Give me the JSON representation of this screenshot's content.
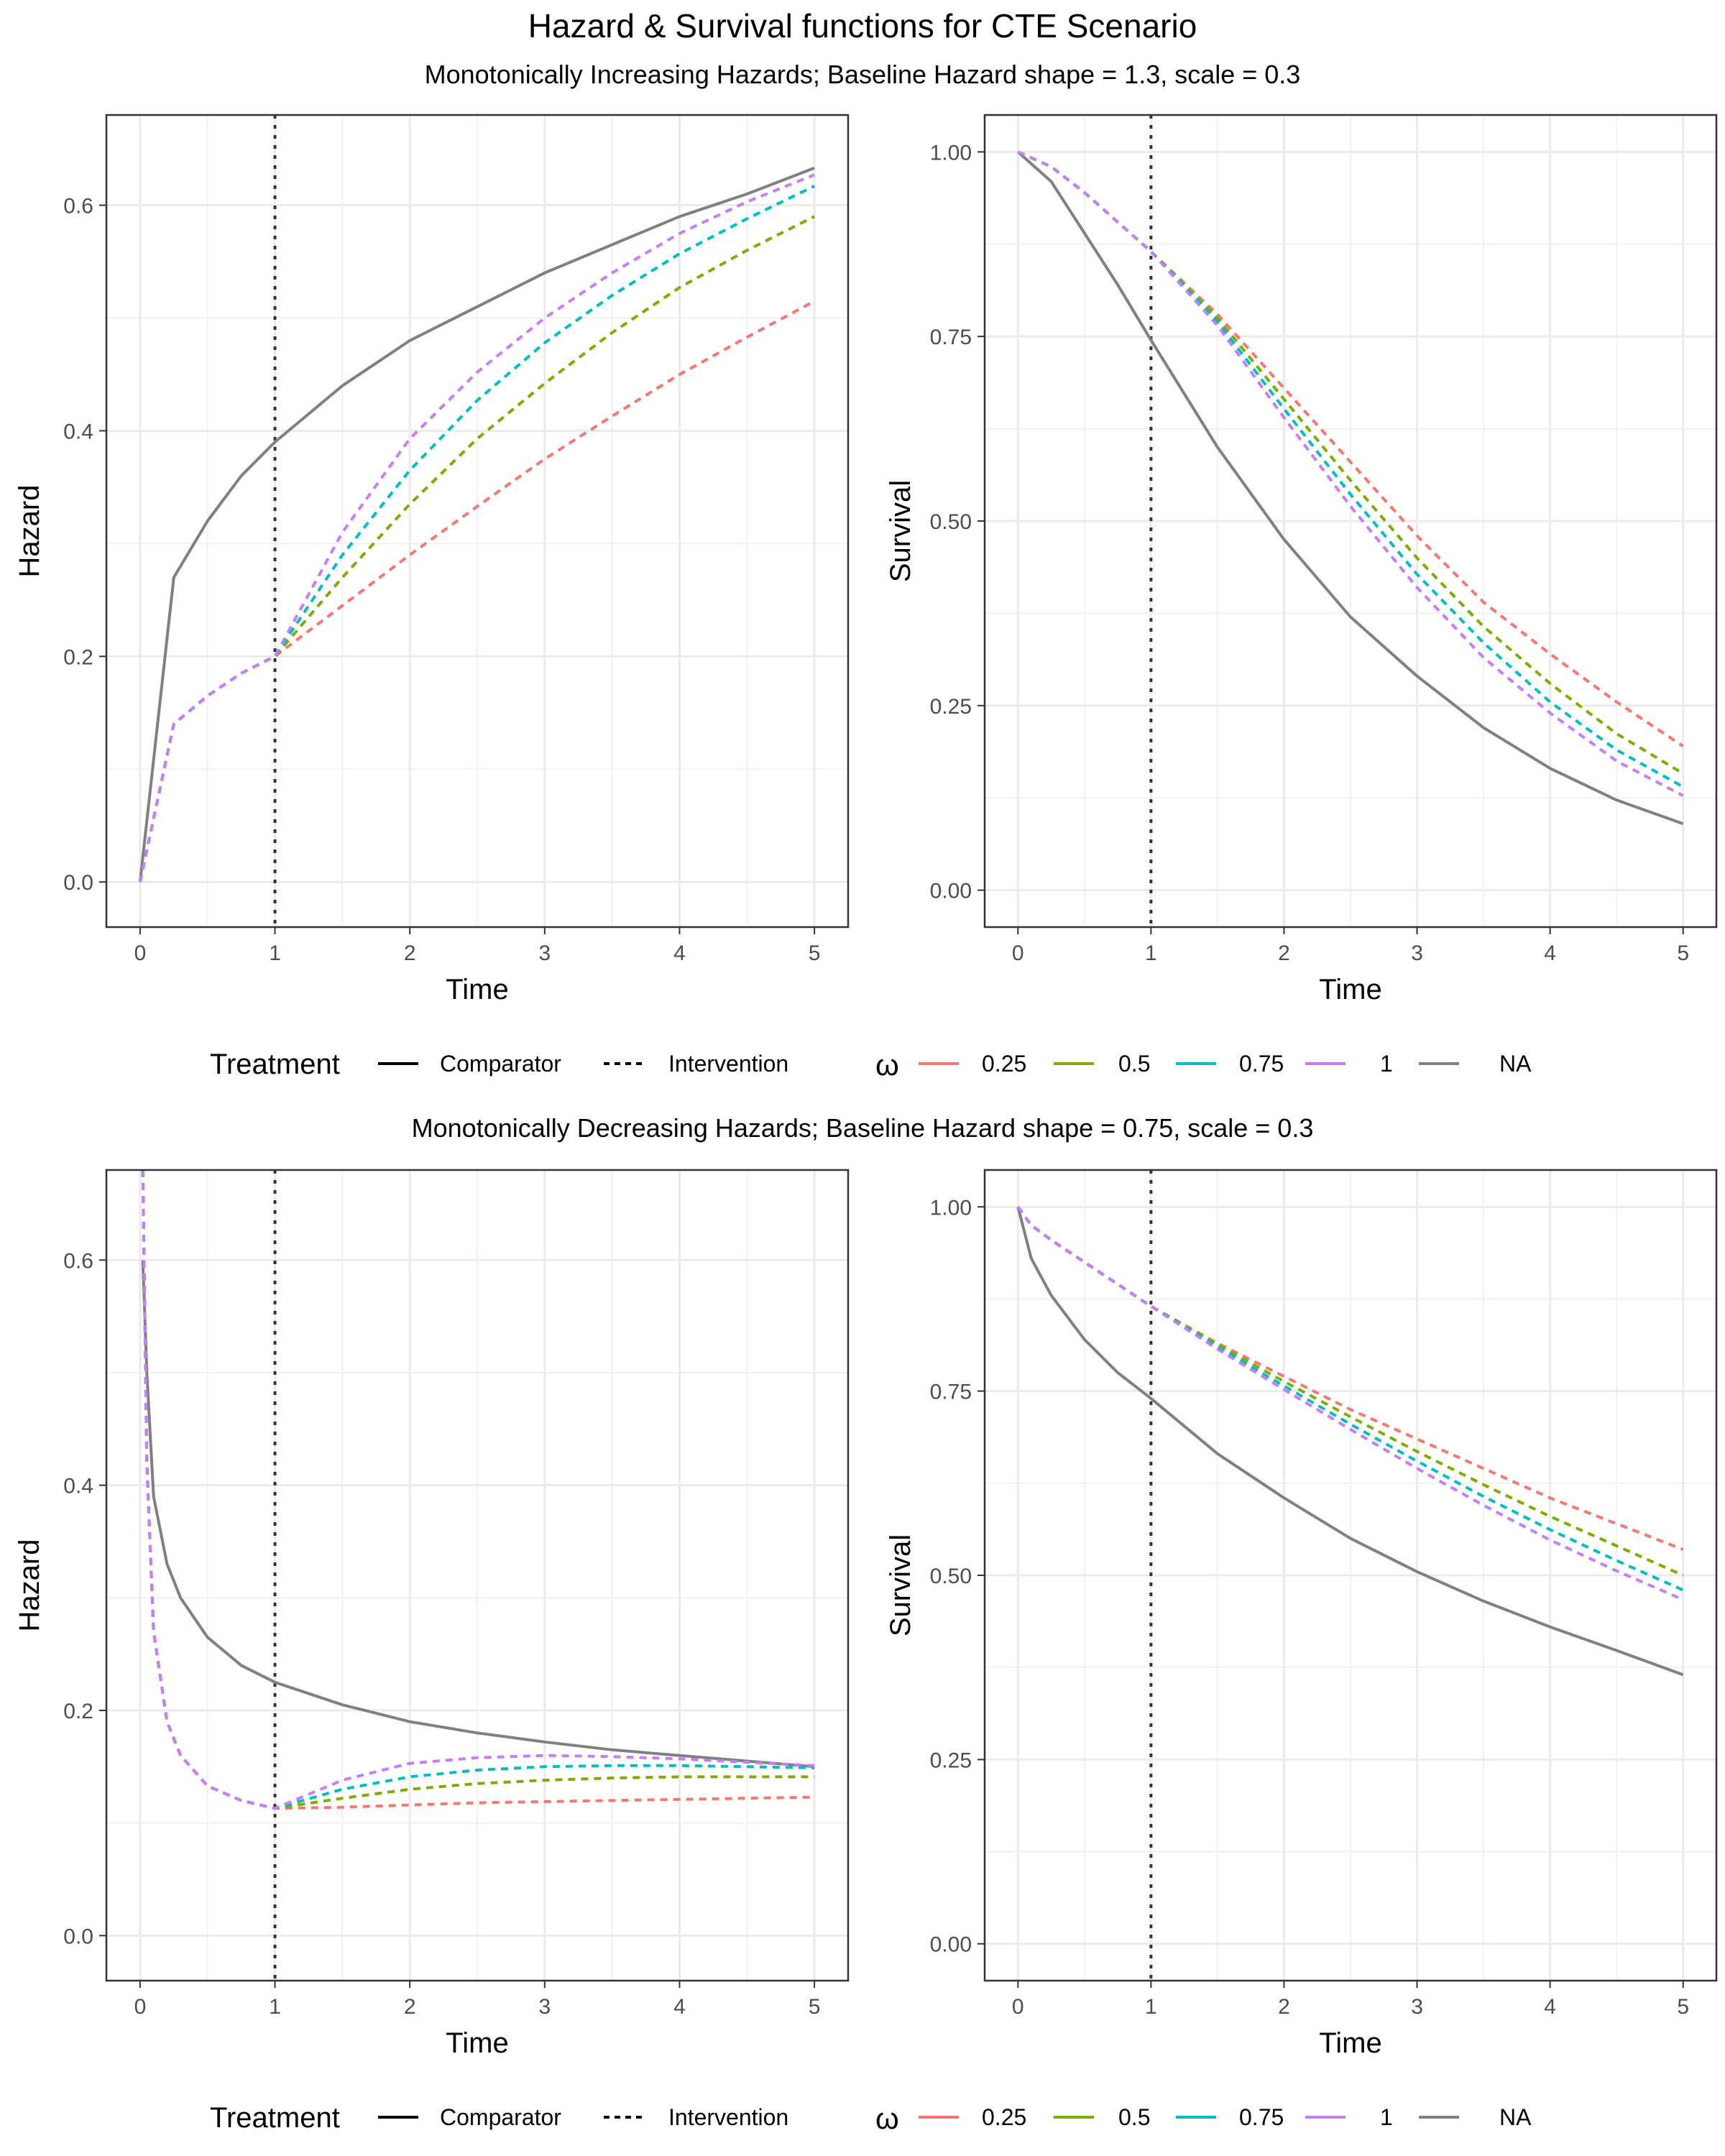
{
  "title": "Hazard & Survival functions for CTE Scenario",
  "legend": {
    "treatment_title": "Treatment",
    "treatment_items": [
      {
        "label": "Comparator",
        "linetype": "solid"
      },
      {
        "label": "Intervention",
        "linetype": "dashed"
      }
    ],
    "omega_title": "ω",
    "omega_items": [
      {
        "label": "0.25",
        "color": "#F8766D"
      },
      {
        "label": "0.5",
        "color": "#7CAE00"
      },
      {
        "label": "0.75",
        "color": "#00BFC4"
      },
      {
        "label": "1",
        "color": "#C77CFF"
      },
      {
        "label": "NA",
        "color": "#808080"
      }
    ]
  },
  "chart_data": [
    {
      "type": "line",
      "section_subtitle": "Monotonically Increasing Hazards; Baseline Hazard shape = 1.3, scale = 0.3",
      "xlabel": "Time",
      "ylabel": "Hazard",
      "xlim": [
        -0.25,
        5.25
      ],
      "ylim": [
        -0.04,
        0.68
      ],
      "xticks": [
        "0",
        "1",
        "2",
        "3",
        "4",
        "5"
      ],
      "yticks": [
        "0.0",
        "0.2",
        "0.4",
        "0.6"
      ],
      "vline_x": 1,
      "x": [
        0,
        0.25,
        0.5,
        0.75,
        1,
        1.5,
        2,
        2.5,
        3,
        3.5,
        4,
        4.5,
        5
      ],
      "series": [
        {
          "name": "NA",
          "treatment": "Comparator",
          "color": "#808080",
          "values": [
            0,
            0.27,
            0.32,
            0.36,
            0.39,
            0.44,
            0.48,
            0.51,
            0.54,
            0.565,
            0.59,
            0.61,
            0.633
          ]
        },
        {
          "name": "0.25",
          "treatment": "Intervention",
          "color": "#F8766D",
          "values": [
            0,
            0.14,
            0.165,
            0.185,
            0.2,
            0.245,
            0.29,
            0.333,
            0.375,
            0.413,
            0.45,
            0.483,
            0.515
          ]
        },
        {
          "name": "0.5",
          "treatment": "Intervention",
          "color": "#7CAE00",
          "values": [
            0,
            0.14,
            0.165,
            0.185,
            0.2,
            0.27,
            0.335,
            0.393,
            0.442,
            0.487,
            0.527,
            0.56,
            0.59
          ]
        },
        {
          "name": "0.75",
          "treatment": "Intervention",
          "color": "#00BFC4",
          "values": [
            0,
            0.14,
            0.165,
            0.185,
            0.2,
            0.29,
            0.365,
            0.427,
            0.478,
            0.52,
            0.557,
            0.588,
            0.617
          ]
        },
        {
          "name": "1",
          "treatment": "Intervention",
          "color": "#C77CFF",
          "values": [
            0,
            0.14,
            0.165,
            0.185,
            0.2,
            0.31,
            0.393,
            0.452,
            0.5,
            0.54,
            0.575,
            0.603,
            0.627
          ]
        }
      ]
    },
    {
      "type": "line",
      "xlabel": "Time",
      "ylabel": "Survival",
      "xlim": [
        -0.25,
        5.25
      ],
      "ylim": [
        -0.05,
        1.05
      ],
      "xticks": [
        "0",
        "1",
        "2",
        "3",
        "4",
        "5"
      ],
      "yticks": [
        "0.00",
        "0.25",
        "0.50",
        "0.75",
        "1.00"
      ],
      "vline_x": 1,
      "x": [
        0,
        0.25,
        0.5,
        0.75,
        1,
        1.5,
        2,
        2.5,
        3,
        3.5,
        4,
        4.5,
        5
      ],
      "series": [
        {
          "name": "NA",
          "treatment": "Comparator",
          "color": "#808080",
          "values": [
            1.0,
            0.96,
            0.89,
            0.82,
            0.745,
            0.6,
            0.475,
            0.37,
            0.29,
            0.22,
            0.165,
            0.122,
            0.09
          ]
        },
        {
          "name": "0.25",
          "treatment": "Intervention",
          "color": "#F8766D",
          "values": [
            1.0,
            0.98,
            0.945,
            0.905,
            0.865,
            0.78,
            0.68,
            0.58,
            0.48,
            0.39,
            0.32,
            0.255,
            0.195
          ]
        },
        {
          "name": "0.5",
          "treatment": "Intervention",
          "color": "#7CAE00",
          "values": [
            1.0,
            0.98,
            0.945,
            0.905,
            0.865,
            0.775,
            0.665,
            0.555,
            0.45,
            0.357,
            0.28,
            0.212,
            0.158
          ]
        },
        {
          "name": "0.75",
          "treatment": "Intervention",
          "color": "#00BFC4",
          "values": [
            1.0,
            0.98,
            0.945,
            0.905,
            0.865,
            0.77,
            0.652,
            0.536,
            0.428,
            0.335,
            0.255,
            0.19,
            0.14
          ]
        },
        {
          "name": "1",
          "treatment": "Intervention",
          "color": "#C77CFF",
          "values": [
            1.0,
            0.98,
            0.945,
            0.905,
            0.865,
            0.765,
            0.64,
            0.52,
            0.41,
            0.315,
            0.24,
            0.175,
            0.128
          ]
        }
      ]
    },
    {
      "type": "line",
      "section_subtitle": "Monotonically Decreasing Hazards; Baseline Hazard shape = 0.75, scale = 0.3",
      "xlabel": "Time",
      "ylabel": "Hazard",
      "xlim": [
        -0.25,
        5.25
      ],
      "ylim": [
        -0.04,
        0.68
      ],
      "xticks": [
        "0",
        "1",
        "2",
        "3",
        "4",
        "5"
      ],
      "yticks": [
        "0.0",
        "0.2",
        "0.4",
        "0.6"
      ],
      "vline_x": 1,
      "x": [
        0.02,
        0.05,
        0.1,
        0.2,
        0.3,
        0.5,
        0.75,
        1,
        1.5,
        2,
        2.5,
        3,
        3.5,
        4,
        4.5,
        5
      ],
      "series": [
        {
          "name": "NA",
          "treatment": "Comparator",
          "color": "#808080",
          "values": [
            0.6,
            0.5,
            0.39,
            0.33,
            0.3,
            0.265,
            0.24,
            0.225,
            0.205,
            0.19,
            0.18,
            0.172,
            0.165,
            0.16,
            0.155,
            0.15
          ]
        },
        {
          "name": "0.25",
          "treatment": "Intervention",
          "color": "#F8766D",
          "values": [
            0.68,
            0.42,
            0.27,
            0.19,
            0.16,
            0.133,
            0.12,
            0.113,
            0.114,
            0.116,
            0.118,
            0.119,
            0.12,
            0.121,
            0.122,
            0.123
          ]
        },
        {
          "name": "0.5",
          "treatment": "Intervention",
          "color": "#7CAE00",
          "values": [
            0.68,
            0.42,
            0.27,
            0.19,
            0.16,
            0.133,
            0.12,
            0.113,
            0.122,
            0.13,
            0.135,
            0.138,
            0.14,
            0.141,
            0.141,
            0.141
          ]
        },
        {
          "name": "0.75",
          "treatment": "Intervention",
          "color": "#00BFC4",
          "values": [
            0.68,
            0.42,
            0.27,
            0.19,
            0.16,
            0.133,
            0.12,
            0.113,
            0.13,
            0.141,
            0.147,
            0.15,
            0.151,
            0.151,
            0.15,
            0.149
          ]
        },
        {
          "name": "1",
          "treatment": "Intervention",
          "color": "#C77CFF",
          "values": [
            0.68,
            0.42,
            0.27,
            0.19,
            0.16,
            0.133,
            0.12,
            0.113,
            0.138,
            0.153,
            0.158,
            0.16,
            0.159,
            0.157,
            0.154,
            0.151
          ]
        }
      ]
    },
    {
      "type": "line",
      "xlabel": "Time",
      "ylabel": "Survival",
      "xlim": [
        -0.25,
        5.25
      ],
      "ylim": [
        -0.05,
        1.05
      ],
      "xticks": [
        "0",
        "1",
        "2",
        "3",
        "4",
        "5"
      ],
      "yticks": [
        "0.00",
        "0.25",
        "0.50",
        "0.75",
        "1.00"
      ],
      "vline_x": 1,
      "x": [
        0,
        0.1,
        0.25,
        0.5,
        0.75,
        1,
        1.5,
        2,
        2.5,
        3,
        3.5,
        4,
        4.5,
        5
      ],
      "series": [
        {
          "name": "NA",
          "treatment": "Comparator",
          "color": "#808080",
          "values": [
            1.0,
            0.93,
            0.88,
            0.82,
            0.775,
            0.74,
            0.665,
            0.605,
            0.55,
            0.505,
            0.465,
            0.43,
            0.398,
            0.365
          ]
        },
        {
          "name": "0.25",
          "treatment": "Intervention",
          "color": "#F8766D",
          "values": [
            1.0,
            0.975,
            0.955,
            0.925,
            0.895,
            0.865,
            0.815,
            0.77,
            0.725,
            0.685,
            0.645,
            0.605,
            0.57,
            0.535
          ]
        },
        {
          "name": "0.5",
          "treatment": "Intervention",
          "color": "#7CAE00",
          "values": [
            1.0,
            0.975,
            0.955,
            0.925,
            0.895,
            0.865,
            0.813,
            0.763,
            0.715,
            0.668,
            0.623,
            0.58,
            0.54,
            0.5
          ]
        },
        {
          "name": "0.75",
          "treatment": "Intervention",
          "color": "#00BFC4",
          "values": [
            1.0,
            0.975,
            0.955,
            0.925,
            0.895,
            0.865,
            0.81,
            0.757,
            0.705,
            0.655,
            0.607,
            0.562,
            0.52,
            0.48
          ]
        },
        {
          "name": "1",
          "treatment": "Intervention",
          "color": "#C77CFF",
          "values": [
            1.0,
            0.975,
            0.955,
            0.925,
            0.895,
            0.865,
            0.807,
            0.752,
            0.698,
            0.645,
            0.595,
            0.548,
            0.506,
            0.467
          ]
        }
      ]
    }
  ]
}
